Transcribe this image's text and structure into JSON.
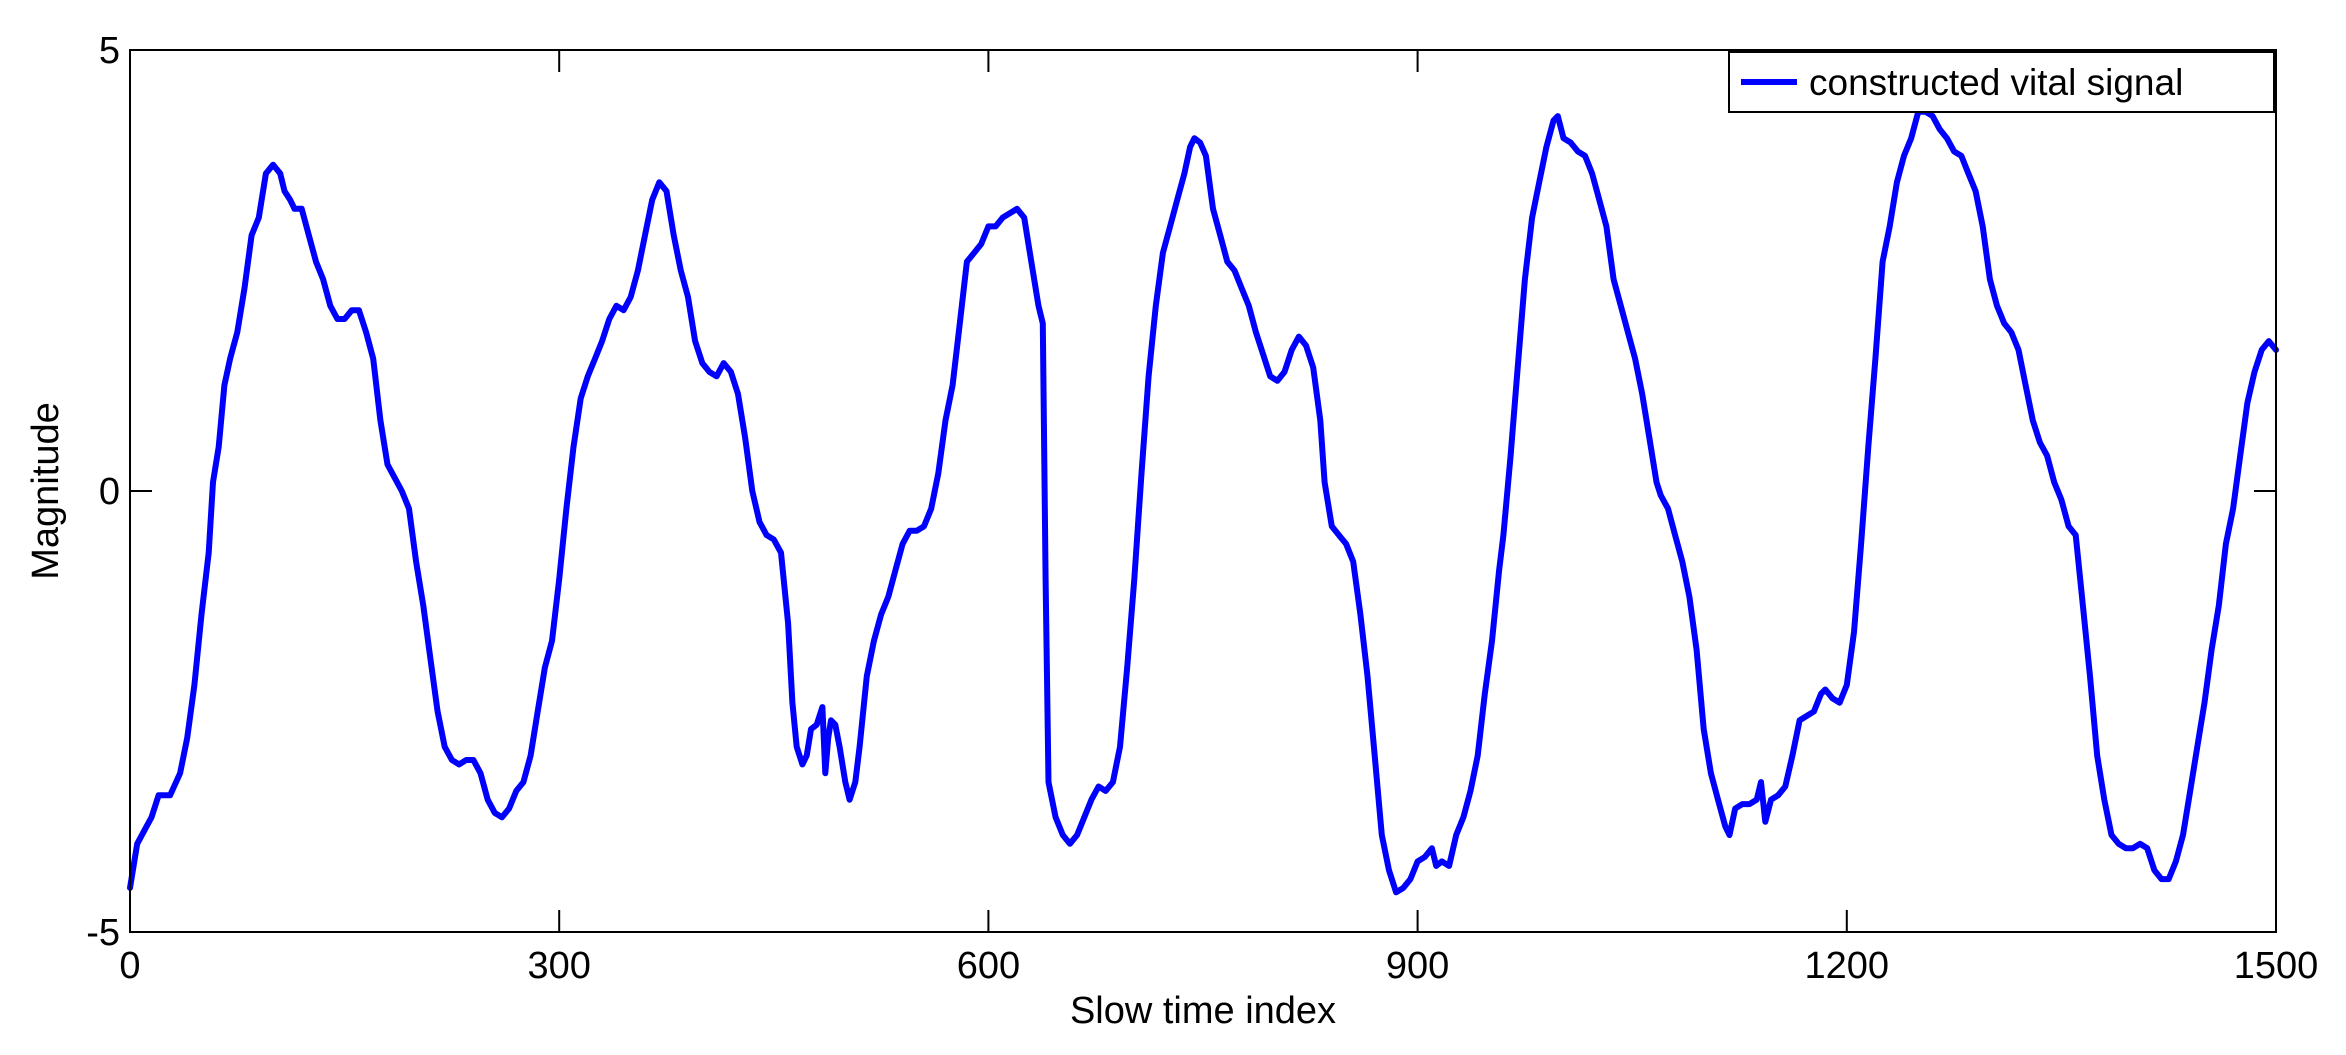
{
  "chart_data": {
    "type": "line",
    "title": "",
    "xlabel": "Slow time index",
    "ylabel": "Magnitude",
    "xlim": [
      0,
      1500
    ],
    "ylim": [
      -5,
      5
    ],
    "x_ticks": [
      0,
      300,
      600,
      900,
      1200,
      1500
    ],
    "y_ticks": [
      -5,
      0,
      5
    ],
    "grid": false,
    "legend": {
      "position": "top-right",
      "entries": [
        "constructed vital signal"
      ]
    },
    "series": [
      {
        "name": "constructed vital signal",
        "color": "#0000ff",
        "points": [
          [
            0,
            -4.5
          ],
          [
            5,
            -4.0
          ],
          [
            10,
            -3.85
          ],
          [
            15,
            -3.7
          ],
          [
            20,
            -3.45
          ],
          [
            28,
            -3.45
          ],
          [
            35,
            -3.2
          ],
          [
            40,
            -2.8
          ],
          [
            45,
            -2.2
          ],
          [
            50,
            -1.4
          ],
          [
            55,
            -0.7
          ],
          [
            58,
            0.1
          ],
          [
            62,
            0.5
          ],
          [
            66,
            1.2
          ],
          [
            70,
            1.5
          ],
          [
            75,
            1.8
          ],
          [
            80,
            2.3
          ],
          [
            85,
            2.9
          ],
          [
            90,
            3.1
          ],
          [
            95,
            3.6
          ],
          [
            100,
            3.7
          ],
          [
            105,
            3.6
          ],
          [
            108,
            3.4
          ],
          [
            112,
            3.3
          ],
          [
            115,
            3.2
          ],
          [
            120,
            3.2
          ],
          [
            125,
            2.9
          ],
          [
            130,
            2.6
          ],
          [
            135,
            2.4
          ],
          [
            140,
            2.1
          ],
          [
            145,
            1.95
          ],
          [
            150,
            1.95
          ],
          [
            155,
            2.05
          ],
          [
            160,
            2.05
          ],
          [
            165,
            1.8
          ],
          [
            170,
            1.5
          ],
          [
            175,
            0.8
          ],
          [
            180,
            0.3
          ],
          [
            185,
            0.15
          ],
          [
            190,
            0.0
          ],
          [
            195,
            -0.2
          ],
          [
            200,
            -0.8
          ],
          [
            205,
            -1.3
          ],
          [
            210,
            -1.9
          ],
          [
            215,
            -2.5
          ],
          [
            220,
            -2.9
          ],
          [
            225,
            -3.05
          ],
          [
            230,
            -3.1
          ],
          [
            235,
            -3.05
          ],
          [
            240,
            -3.05
          ],
          [
            245,
            -3.2
          ],
          [
            250,
            -3.5
          ],
          [
            255,
            -3.65
          ],
          [
            260,
            -3.7
          ],
          [
            265,
            -3.6
          ],
          [
            270,
            -3.4
          ],
          [
            275,
            -3.3
          ],
          [
            280,
            -3.0
          ],
          [
            285,
            -2.5
          ],
          [
            290,
            -2.0
          ],
          [
            295,
            -1.7
          ],
          [
            300,
            -1.0
          ],
          [
            305,
            -0.2
          ],
          [
            310,
            0.5
          ],
          [
            315,
            1.05
          ],
          [
            320,
            1.3
          ],
          [
            325,
            1.5
          ],
          [
            330,
            1.7
          ],
          [
            335,
            1.95
          ],
          [
            340,
            2.1
          ],
          [
            345,
            2.05
          ],
          [
            350,
            2.2
          ],
          [
            355,
            2.5
          ],
          [
            360,
            2.9
          ],
          [
            365,
            3.3
          ],
          [
            370,
            3.5
          ],
          [
            375,
            3.4
          ],
          [
            380,
            2.9
          ],
          [
            385,
            2.5
          ],
          [
            390,
            2.2
          ],
          [
            395,
            1.7
          ],
          [
            400,
            1.45
          ],
          [
            405,
            1.35
          ],
          [
            410,
            1.3
          ],
          [
            415,
            1.45
          ],
          [
            420,
            1.35
          ],
          [
            425,
            1.1
          ],
          [
            430,
            0.6
          ],
          [
            435,
            0.0
          ],
          [
            440,
            -0.35
          ],
          [
            445,
            -0.5
          ],
          [
            450,
            -0.55
          ],
          [
            455,
            -0.7
          ],
          [
            460,
            -1.5
          ],
          [
            463,
            -2.4
          ],
          [
            466,
            -2.9
          ],
          [
            470,
            -3.1
          ],
          [
            473,
            -3.0
          ],
          [
            476,
            -2.7
          ],
          [
            480,
            -2.65
          ],
          [
            484,
            -2.45
          ],
          [
            486,
            -3.2
          ],
          [
            488,
            -2.8
          ],
          [
            490,
            -2.6
          ],
          [
            493,
            -2.65
          ],
          [
            496,
            -2.9
          ],
          [
            500,
            -3.3
          ],
          [
            503,
            -3.5
          ],
          [
            507,
            -3.3
          ],
          [
            510,
            -2.9
          ],
          [
            515,
            -2.1
          ],
          [
            520,
            -1.7
          ],
          [
            525,
            -1.4
          ],
          [
            530,
            -1.2
          ],
          [
            535,
            -0.9
          ],
          [
            540,
            -0.6
          ],
          [
            545,
            -0.45
          ],
          [
            550,
            -0.45
          ],
          [
            555,
            -0.4
          ],
          [
            560,
            -0.2
          ],
          [
            565,
            0.2
          ],
          [
            570,
            0.8
          ],
          [
            575,
            1.2
          ],
          [
            580,
            1.9
          ],
          [
            585,
            2.6
          ],
          [
            590,
            2.7
          ],
          [
            595,
            2.8
          ],
          [
            600,
            3.0
          ],
          [
            605,
            3.0
          ],
          [
            610,
            3.1
          ],
          [
            615,
            3.15
          ],
          [
            620,
            3.2
          ],
          [
            625,
            3.1
          ],
          [
            630,
            2.6
          ],
          [
            635,
            2.1
          ],
          [
            638,
            1.9
          ],
          [
            640,
            -1.0
          ],
          [
            642,
            -3.3
          ],
          [
            647,
            -3.7
          ],
          [
            652,
            -3.9
          ],
          [
            657,
            -4.0
          ],
          [
            662,
            -3.9
          ],
          [
            667,
            -3.7
          ],
          [
            672,
            -3.5
          ],
          [
            677,
            -3.35
          ],
          [
            682,
            -3.4
          ],
          [
            687,
            -3.3
          ],
          [
            692,
            -2.9
          ],
          [
            697,
            -2.0
          ],
          [
            702,
            -1.0
          ],
          [
            707,
            0.2
          ],
          [
            712,
            1.3
          ],
          [
            717,
            2.1
          ],
          [
            722,
            2.7
          ],
          [
            727,
            3.0
          ],
          [
            732,
            3.3
          ],
          [
            737,
            3.6
          ],
          [
            741,
            3.9
          ],
          [
            744,
            4.0
          ],
          [
            748,
            3.95
          ],
          [
            752,
            3.8
          ],
          [
            757,
            3.2
          ],
          [
            762,
            2.9
          ],
          [
            767,
            2.6
          ],
          [
            772,
            2.5
          ],
          [
            777,
            2.3
          ],
          [
            782,
            2.1
          ],
          [
            787,
            1.8
          ],
          [
            792,
            1.55
          ],
          [
            797,
            1.3
          ],
          [
            802,
            1.25
          ],
          [
            807,
            1.35
          ],
          [
            812,
            1.6
          ],
          [
            817,
            1.75
          ],
          [
            822,
            1.65
          ],
          [
            827,
            1.4
          ],
          [
            832,
            0.8
          ],
          [
            835,
            0.1
          ],
          [
            840,
            -0.4
          ],
          [
            845,
            -0.5
          ],
          [
            850,
            -0.6
          ],
          [
            855,
            -0.8
          ],
          [
            860,
            -1.4
          ],
          [
            865,
            -2.1
          ],
          [
            870,
            -3.0
          ],
          [
            875,
            -3.9
          ],
          [
            880,
            -4.3
          ],
          [
            885,
            -4.55
          ],
          [
            890,
            -4.5
          ],
          [
            895,
            -4.4
          ],
          [
            900,
            -4.2
          ],
          [
            905,
            -4.15
          ],
          [
            910,
            -4.05
          ],
          [
            913,
            -4.25
          ],
          [
            917,
            -4.2
          ],
          [
            922,
            -4.25
          ],
          [
            927,
            -3.9
          ],
          [
            932,
            -3.7
          ],
          [
            937,
            -3.4
          ],
          [
            942,
            -3.0
          ],
          [
            947,
            -2.3
          ],
          [
            952,
            -1.7
          ],
          [
            957,
            -0.9
          ],
          [
            960,
            -0.5
          ],
          [
            965,
            0.4
          ],
          [
            970,
            1.4
          ],
          [
            975,
            2.4
          ],
          [
            980,
            3.1
          ],
          [
            985,
            3.5
          ],
          [
            990,
            3.9
          ],
          [
            995,
            4.2
          ],
          [
            998,
            4.25
          ],
          [
            1002,
            4.0
          ],
          [
            1007,
            3.95
          ],
          [
            1012,
            3.85
          ],
          [
            1017,
            3.8
          ],
          [
            1022,
            3.6
          ],
          [
            1027,
            3.3
          ],
          [
            1032,
            3.0
          ],
          [
            1037,
            2.4
          ],
          [
            1042,
            2.1
          ],
          [
            1047,
            1.8
          ],
          [
            1052,
            1.5
          ],
          [
            1057,
            1.1
          ],
          [
            1062,
            0.6
          ],
          [
            1067,
            0.1
          ],
          [
            1070,
            -0.05
          ],
          [
            1075,
            -0.2
          ],
          [
            1080,
            -0.5
          ],
          [
            1085,
            -0.8
          ],
          [
            1090,
            -1.2
          ],
          [
            1095,
            -1.8
          ],
          [
            1100,
            -2.7
          ],
          [
            1105,
            -3.2
          ],
          [
            1110,
            -3.5
          ],
          [
            1115,
            -3.8
          ],
          [
            1118,
            -3.9
          ],
          [
            1122,
            -3.6
          ],
          [
            1127,
            -3.55
          ],
          [
            1132,
            -3.55
          ],
          [
            1137,
            -3.5
          ],
          [
            1140,
            -3.3
          ],
          [
            1143,
            -3.75
          ],
          [
            1147,
            -3.5
          ],
          [
            1152,
            -3.45
          ],
          [
            1157,
            -3.35
          ],
          [
            1162,
            -3.0
          ],
          [
            1167,
            -2.6
          ],
          [
            1172,
            -2.55
          ],
          [
            1177,
            -2.5
          ],
          [
            1182,
            -2.3
          ],
          [
            1185,
            -2.25
          ],
          [
            1190,
            -2.35
          ],
          [
            1195,
            -2.4
          ],
          [
            1200,
            -2.2
          ],
          [
            1205,
            -1.6
          ],
          [
            1210,
            -0.6
          ],
          [
            1215,
            0.5
          ],
          [
            1220,
            1.5
          ],
          [
            1225,
            2.6
          ],
          [
            1230,
            3.0
          ],
          [
            1235,
            3.5
          ],
          [
            1240,
            3.8
          ],
          [
            1245,
            4.0
          ],
          [
            1250,
            4.3
          ],
          [
            1255,
            4.3
          ],
          [
            1260,
            4.25
          ],
          [
            1265,
            4.1
          ],
          [
            1270,
            4.0
          ],
          [
            1275,
            3.85
          ],
          [
            1280,
            3.8
          ],
          [
            1285,
            3.6
          ],
          [
            1290,
            3.4
          ],
          [
            1295,
            3.0
          ],
          [
            1300,
            2.4
          ],
          [
            1305,
            2.1
          ],
          [
            1310,
            1.9
          ],
          [
            1315,
            1.8
          ],
          [
            1320,
            1.6
          ],
          [
            1325,
            1.2
          ],
          [
            1330,
            0.8
          ],
          [
            1335,
            0.55
          ],
          [
            1340,
            0.4
          ],
          [
            1345,
            0.1
          ],
          [
            1350,
            -0.1
          ],
          [
            1355,
            -0.4
          ],
          [
            1360,
            -0.5
          ],
          [
            1365,
            -1.3
          ],
          [
            1370,
            -2.1
          ],
          [
            1375,
            -3.0
          ],
          [
            1380,
            -3.5
          ],
          [
            1385,
            -3.9
          ],
          [
            1390,
            -4.0
          ],
          [
            1395,
            -4.05
          ],
          [
            1400,
            -4.05
          ],
          [
            1405,
            -4.0
          ],
          [
            1410,
            -4.05
          ],
          [
            1415,
            -4.3
          ],
          [
            1420,
            -4.4
          ],
          [
            1425,
            -4.4
          ],
          [
            1430,
            -4.2
          ],
          [
            1435,
            -3.9
          ],
          [
            1440,
            -3.4
          ],
          [
            1445,
            -2.9
          ],
          [
            1450,
            -2.4
          ],
          [
            1455,
            -1.8
          ],
          [
            1460,
            -1.3
          ],
          [
            1465,
            -0.6
          ],
          [
            1470,
            -0.2
          ],
          [
            1475,
            0.4
          ],
          [
            1480,
            1.0
          ],
          [
            1485,
            1.35
          ],
          [
            1490,
            1.6
          ],
          [
            1495,
            1.7
          ],
          [
            1500,
            1.6
          ]
        ]
      }
    ]
  }
}
